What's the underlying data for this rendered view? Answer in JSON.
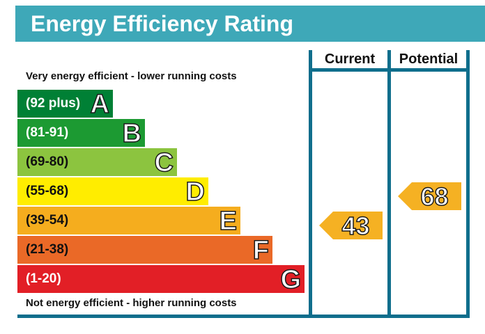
{
  "title": "Energy Efficiency Rating",
  "columns": {
    "current": "Current",
    "potential": "Potential"
  },
  "top_caption": "Very energy efficient - lower running costs",
  "bottom_caption": "Not energy efficient - higher running costs",
  "colors": {
    "banner": "#3ea8b8",
    "frame": "#0f6e8c",
    "arrow": "#f5b123"
  },
  "chart_data": {
    "type": "bar",
    "title": "Energy Efficiency Rating",
    "bands": [
      {
        "letter": "A",
        "range": "(92 plus)",
        "min": 92,
        "max": 100,
        "color": "#008035"
      },
      {
        "letter": "B",
        "range": "(81-91)",
        "min": 81,
        "max": 91,
        "color": "#1c9a32"
      },
      {
        "letter": "C",
        "range": "(69-80)",
        "min": 69,
        "max": 80,
        "color": "#8cc43f"
      },
      {
        "letter": "D",
        "range": "(55-68)",
        "min": 55,
        "max": 68,
        "color": "#ffed00"
      },
      {
        "letter": "E",
        "range": "(39-54)",
        "min": 39,
        "max": 54,
        "color": "#f5ad1e"
      },
      {
        "letter": "F",
        "range": "(21-38)",
        "min": 21,
        "max": 38,
        "color": "#ea6927"
      },
      {
        "letter": "G",
        "range": "(1-20)",
        "min": 1,
        "max": 20,
        "color": "#e21f26"
      }
    ],
    "ratings": [
      {
        "column": "Current",
        "value": 43,
        "band": "E"
      },
      {
        "column": "Potential",
        "value": 68,
        "band": "D"
      }
    ]
  }
}
